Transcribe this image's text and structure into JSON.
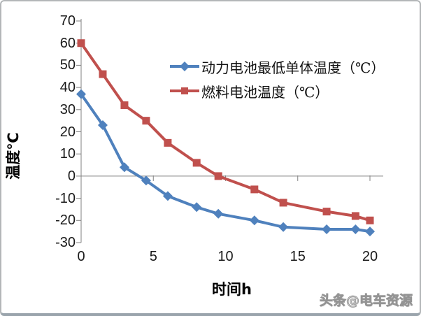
{
  "watermark": "头条@电车资源",
  "chart_data": {
    "type": "line",
    "title": "",
    "xlabel": "时间h",
    "ylabel": "温度℃",
    "xlim": [
      0,
      20
    ],
    "ylim": [
      -30,
      70
    ],
    "x_ticks": [
      0,
      5,
      10,
      15,
      20
    ],
    "y_ticks": [
      70,
      60,
      50,
      40,
      30,
      20,
      10,
      0,
      -10,
      -20,
      -30
    ],
    "grid": false,
    "legend_position": "upper-right",
    "axis_color": "#808080",
    "x": [
      0,
      1.5,
      3,
      4.5,
      6,
      8,
      9.5,
      12,
      14,
      17,
      19,
      20
    ],
    "series": [
      {
        "name": "动力电池最低单体温度（℃）",
        "color": "#4F81BD",
        "marker": "diamond",
        "values": [
          37,
          23,
          4,
          -2,
          -9,
          -14,
          -17,
          -20,
          -23,
          -24,
          -24,
          -25
        ]
      },
      {
        "name": "燃料电池温度（℃）",
        "color": "#C0504D",
        "marker": "square",
        "values": [
          60,
          46,
          32,
          25,
          15,
          6,
          0,
          -6,
          -12,
          -16,
          -18,
          -20
        ]
      }
    ]
  }
}
